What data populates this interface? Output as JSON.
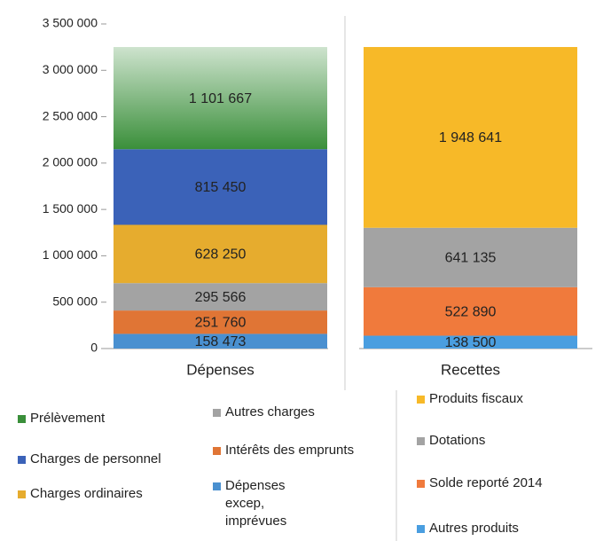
{
  "chart_data": {
    "type": "stacked-bar",
    "categories": [
      "Dépenses",
      "Recettes"
    ],
    "series": [
      {
        "name": "Dépenses excep, imprévues",
        "color": "#4a90d0",
        "values": [
          158473,
          null
        ],
        "value_labels": [
          "158 473",
          null
        ]
      },
      {
        "name": "Intérêts des emprunts",
        "color": "#e07535",
        "values": [
          251760,
          null
        ],
        "value_labels": [
          "251 760",
          null
        ]
      },
      {
        "name": "Autres charges",
        "color": "#a3a3a3",
        "values": [
          295566,
          null
        ],
        "value_labels": [
          "295 566",
          null
        ]
      },
      {
        "name": "Charges ordinaires",
        "color": "#e6ac2e",
        "values": [
          628250,
          null
        ],
        "value_labels": [
          "628 250",
          null
        ]
      },
      {
        "name": "Charges de personnel",
        "color": "#3b62b8",
        "values": [
          815450,
          null
        ],
        "value_labels": [
          "815 450",
          null
        ]
      },
      {
        "name": "Prélèvement",
        "color": "#3a8f3a",
        "values": [
          1101667,
          null
        ],
        "value_labels": [
          "1 101 667",
          null
        ]
      },
      {
        "name": "Autres produits",
        "color": "#4a9ee0",
        "values": [
          null,
          138500
        ],
        "value_labels": [
          null,
          "138 500"
        ]
      },
      {
        "name": "Solde reporté 2014",
        "color": "#f07a3c",
        "values": [
          null,
          522890
        ],
        "value_labels": [
          null,
          "522 890"
        ]
      },
      {
        "name": "Dotations",
        "color": "#a3a3a3",
        "values": [
          null,
          641135
        ],
        "value_labels": [
          null,
          "641 135"
        ]
      },
      {
        "name": "Produits fiscaux",
        "color": "#f7b928",
        "values": [
          null,
          1948641
        ],
        "value_labels": [
          null,
          "1 948 641"
        ]
      }
    ],
    "ylim": [
      0,
      3500000
    ],
    "yticks": [
      0,
      {
        "value": 500000,
        "label": "500 000"
      },
      {
        "value": 1000000,
        "label": "1 000 000"
      },
      {
        "value": 1500000,
        "label": "1 500 000"
      },
      {
        "value": 2000000,
        "label": "2 000 000"
      },
      {
        "value": 2500000,
        "label": "2 500 000"
      },
      {
        "value": 3000000,
        "label": "3 000 000"
      },
      {
        "value": 3500000,
        "label": "3 500 000"
      }
    ]
  }
}
